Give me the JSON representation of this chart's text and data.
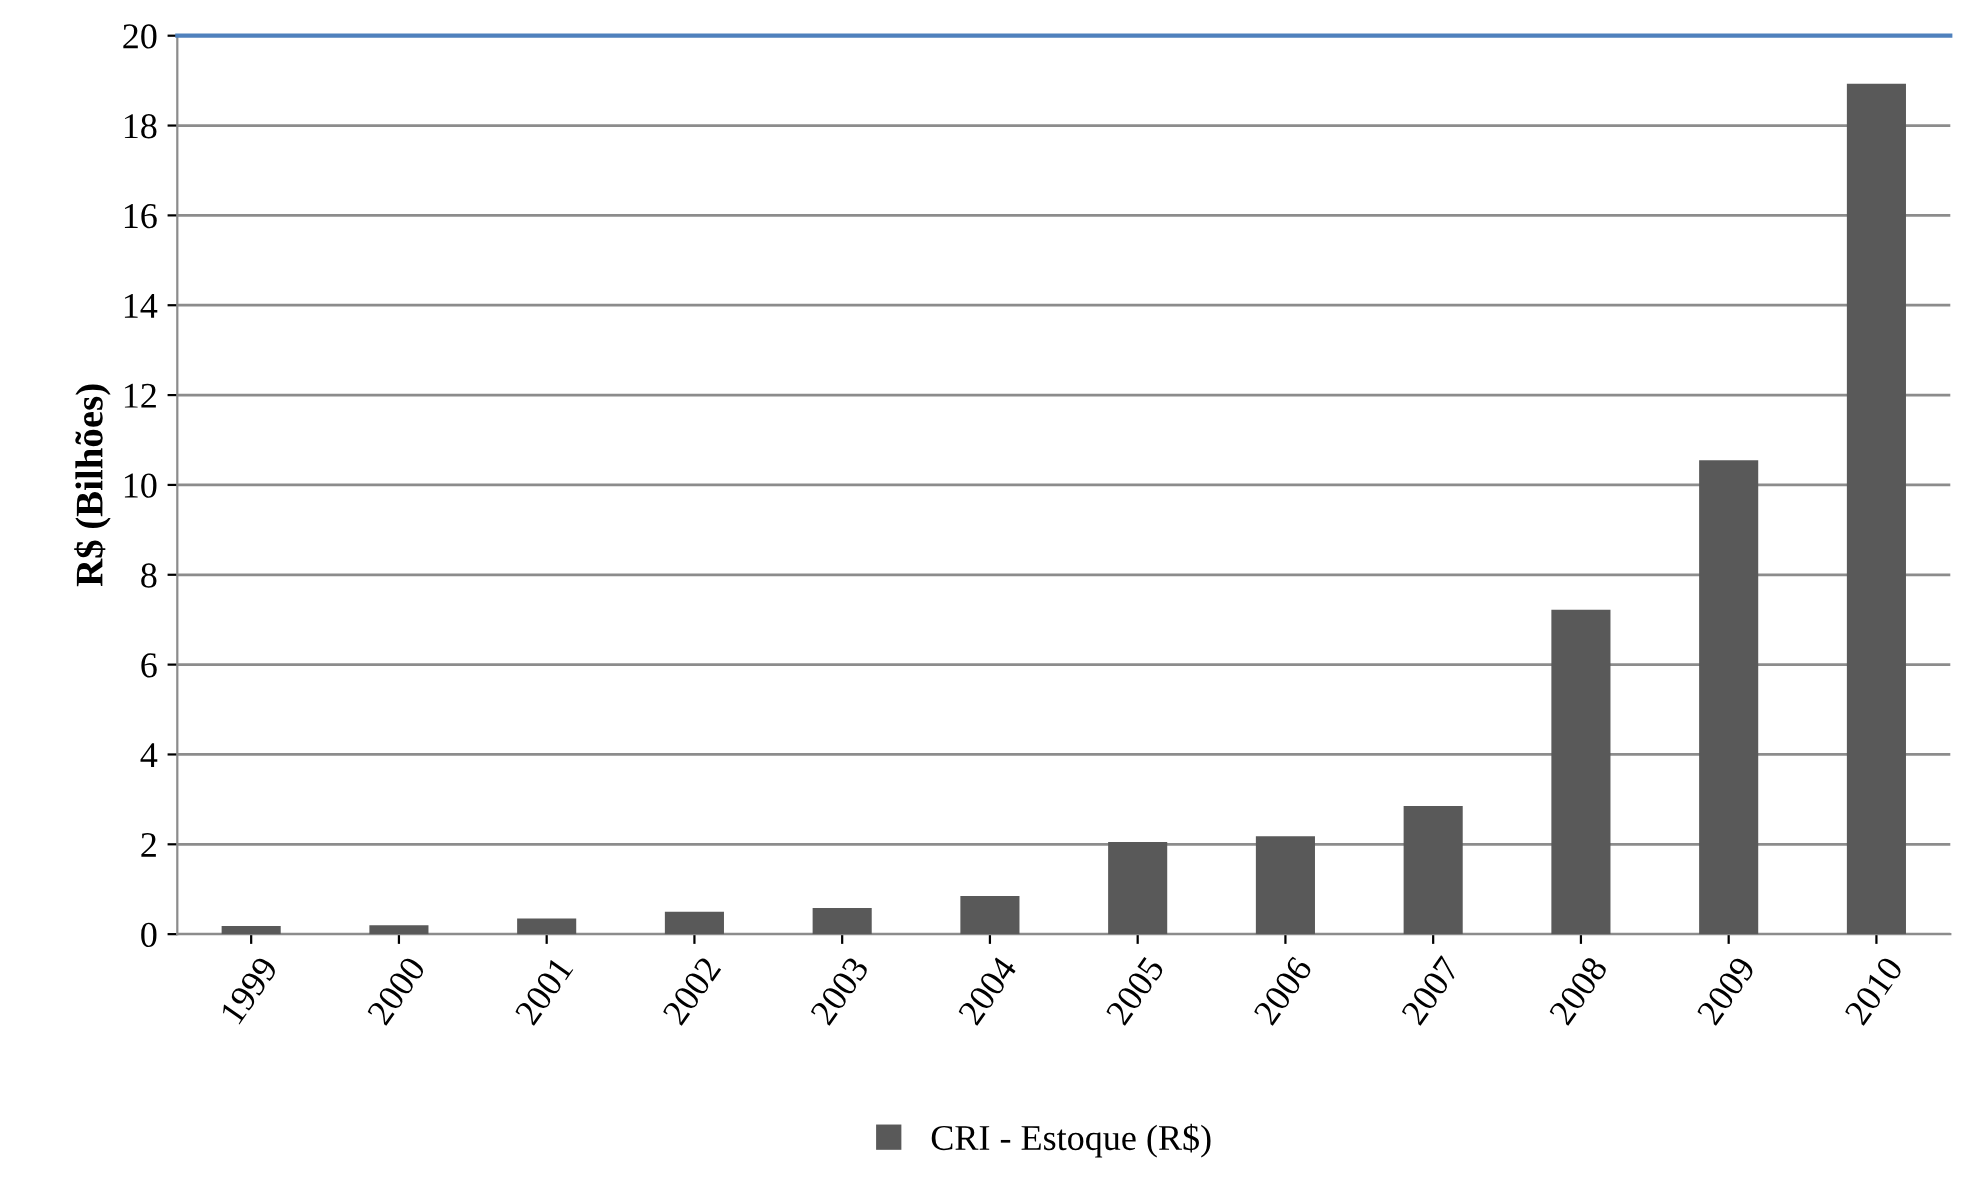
{
  "chart_data": {
    "type": "bar",
    "ylabel": "R$ (Bilhões)",
    "categories": [
      "1999",
      "2000",
      "2001",
      "2002",
      "2003",
      "2004",
      "2005",
      "2006",
      "2007",
      "2008",
      "2009",
      "2010"
    ],
    "series": [
      {
        "name": "CRI - Estoque (R$)",
        "color": "#595959",
        "values": [
          0.18,
          0.2,
          0.35,
          0.5,
          0.58,
          0.85,
          2.05,
          2.18,
          2.85,
          7.22,
          10.55,
          18.93
        ]
      }
    ],
    "ylim": [
      0,
      20
    ],
    "yticks": [
      0,
      2,
      4,
      6,
      8,
      10,
      12,
      14,
      16,
      18,
      20
    ],
    "grid": "y",
    "legend": "bottom"
  }
}
